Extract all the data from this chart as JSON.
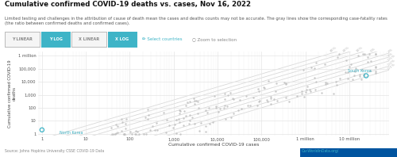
{
  "title": "Cumulative confirmed COVID-19 deaths vs. cases, Nov 16, 2022",
  "subtitle": "Limited testing and challenges in the attribution of cause of death mean the cases and deaths counts may not be accurate. The gray lines show the corresponding case-fatality rates (the ratio between confirmed deaths and confirmed cases).",
  "xlabel": "Cumulative confirmed COVID-19 cases",
  "ylabel": "Cumulative confirmed COVID-19\ndeaths",
  "source": "Source: Johns Hopkins University CSSE COVID-19 Data",
  "owid": "OurWorldInData.org/",
  "bg_color": "#ffffff",
  "scatter_color": "#c0c0c0",
  "highlight_color": "#3eb4c7",
  "cfr_line_color": "#d8d8d8",
  "cfr_rates": [
    0.4,
    0.2,
    0.1,
    0.05,
    0.02,
    0.01,
    0.005,
    0.002,
    0.001
  ],
  "cfr_labels": [
    "40%",
    "20%",
    "10%",
    "5%",
    "2%",
    "1%",
    "0.5%",
    "0.2%",
    "0.1%"
  ],
  "north_korea_x": 1.0,
  "north_korea_y": 2.0,
  "south_korea_x": 24000000,
  "south_korea_y": 29000,
  "xlog_ticks": [
    1,
    10,
    100,
    1000,
    10000,
    100000,
    1000000,
    10000000
  ],
  "xlog_labels": [
    "1",
    "10",
    "100",
    "1,000",
    "10,000",
    "100,000",
    "1 million",
    "10 million"
  ],
  "ylog_ticks": [
    1,
    10,
    100,
    1000,
    10000,
    100000,
    1000000
  ],
  "ylog_labels": [
    "1",
    "10",
    "100",
    "1,000",
    "10,000",
    "100,000",
    "1 million"
  ],
  "xlim": [
    0.8,
    80000000
  ],
  "ylim": [
    0.7,
    2000000
  ],
  "buttons": [
    {
      "label": "Y LINEAR",
      "selected": false
    },
    {
      "label": "Y LOG",
      "selected": true
    },
    {
      "label": "X LINEAR",
      "selected": false
    },
    {
      "label": "X LOG",
      "selected": true
    }
  ]
}
